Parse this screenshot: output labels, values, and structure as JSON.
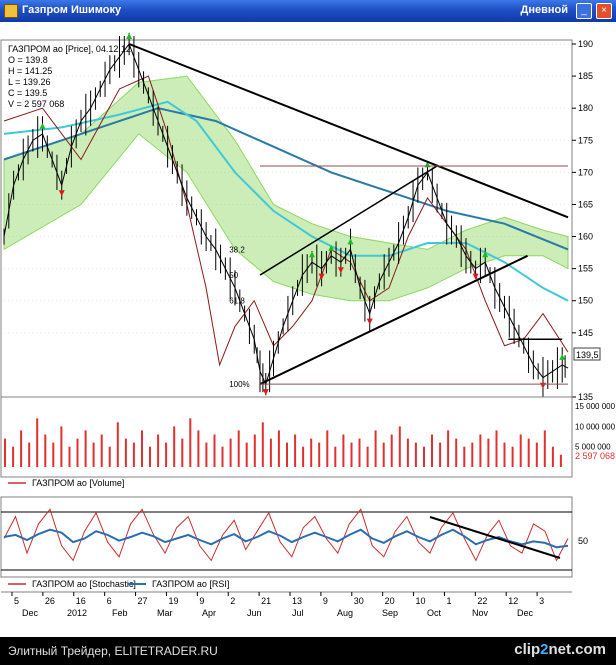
{
  "window": {
    "title": "Газпром Ишимоку",
    "period": "Дневной"
  },
  "colors": {
    "price": "#000000",
    "kijun": "#8b1a1a",
    "ma_fast": "#40c8d8",
    "ma_slow": "#2a7aa8",
    "cloud": "#8ed860",
    "up_marker": "#18c018",
    "down_marker": "#e01818",
    "volume": "#e03030",
    "stochastic": "#c83030",
    "rsi": "#2a6eb0",
    "trendline": "#000000",
    "level_line": "#8a5050"
  },
  "price_panel": {
    "info": [
      "ГАЗПРОМ ао [Price], 04.12.12",
      "O = 139.8",
      "H = 141.25",
      "L = 139.26",
      "C = 139.5",
      "V = 2 597 068"
    ],
    "y_ticks": [
      190,
      185,
      180,
      175,
      170,
      165,
      160,
      155,
      150,
      145,
      135
    ],
    "last_price_label": "139,5",
    "fib_labels": [
      "38.2",
      "50",
      "61.8",
      "100%"
    ]
  },
  "volume_panel": {
    "y_labels": [
      "15 000 000",
      "10 000 000",
      "5 000 000"
    ],
    "last_label": "2 597 068",
    "legend": "ГАЗПРОМ ао [Volume]"
  },
  "osc_panel": {
    "y_label": "50",
    "legend_stoch": "ГАЗПРОМ ао [Stochastic]",
    "legend_rsi": "ГАЗПРОМ ао [RSI]"
  },
  "x_axis": {
    "days": [
      "5",
      "26",
      "16",
      "6",
      "27",
      "19",
      "9",
      "2",
      "21",
      "13",
      "9",
      "30",
      "20",
      "10",
      "1",
      "22",
      "12",
      "3"
    ],
    "months": [
      "Dec",
      "2012",
      "Feb",
      "Mar",
      "Apr",
      "Jun",
      "Jul",
      "Aug",
      "Sep",
      "Oct",
      "Nov",
      "Dec"
    ]
  },
  "footer": {
    "text": "Элитный Трейдер, ELITETRADER.RU",
    "logo_main": "clip",
    "logo_accent": "2",
    "logo_rest": "net.com"
  },
  "chart_data": {
    "type": "line",
    "title": "Газпром Ишимоку",
    "x_range": [
      "2011-12-01",
      "2012-12-04"
    ],
    "ylim": [
      135,
      190
    ],
    "price_path": [
      [
        0,
        160
      ],
      [
        5,
        168
      ],
      [
        10,
        172
      ],
      [
        15,
        175
      ],
      [
        20,
        176
      ],
      [
        25,
        172
      ],
      [
        30,
        168
      ],
      [
        35,
        174
      ],
      [
        40,
        178
      ],
      [
        45,
        180
      ],
      [
        50,
        183
      ],
      [
        55,
        186
      ],
      [
        60,
        188
      ],
      [
        65,
        190
      ],
      [
        70,
        186
      ],
      [
        75,
        182
      ],
      [
        80,
        178
      ],
      [
        85,
        174
      ],
      [
        90,
        170
      ],
      [
        95,
        166
      ],
      [
        100,
        163
      ],
      [
        105,
        160
      ],
      [
        110,
        158
      ],
      [
        115,
        155
      ],
      [
        120,
        152
      ],
      [
        125,
        148
      ],
      [
        130,
        144
      ],
      [
        133,
        139
      ],
      [
        136,
        137
      ],
      [
        140,
        141
      ],
      [
        145,
        146
      ],
      [
        150,
        150
      ],
      [
        155,
        154
      ],
      [
        160,
        156
      ],
      [
        165,
        155
      ],
      [
        170,
        157
      ],
      [
        175,
        156
      ],
      [
        180,
        158
      ],
      [
        185,
        152
      ],
      [
        190,
        148
      ],
      [
        195,
        153
      ],
      [
        200,
        156
      ],
      [
        205,
        159
      ],
      [
        210,
        163
      ],
      [
        215,
        168
      ],
      [
        220,
        170
      ],
      [
        225,
        166
      ],
      [
        230,
        162
      ],
      [
        235,
        160
      ],
      [
        240,
        157
      ],
      [
        245,
        155
      ],
      [
        250,
        156
      ],
      [
        255,
        152
      ],
      [
        260,
        149
      ],
      [
        265,
        146
      ],
      [
        270,
        143
      ],
      [
        275,
        140
      ],
      [
        280,
        138
      ],
      [
        285,
        139
      ],
      [
        290,
        140
      ],
      [
        293,
        139.5
      ]
    ],
    "kijun_path": [
      [
        0,
        178
      ],
      [
        20,
        180
      ],
      [
        40,
        172
      ],
      [
        60,
        183
      ],
      [
        75,
        185
      ],
      [
        85,
        176
      ],
      [
        95,
        165
      ],
      [
        105,
        152
      ],
      [
        112,
        140
      ],
      [
        120,
        146
      ],
      [
        130,
        150
      ],
      [
        140,
        143
      ],
      [
        150,
        146
      ],
      [
        160,
        150
      ],
      [
        170,
        158
      ],
      [
        180,
        156
      ],
      [
        190,
        150
      ],
      [
        200,
        152
      ],
      [
        210,
        160
      ],
      [
        220,
        166
      ],
      [
        230,
        162
      ],
      [
        240,
        158
      ],
      [
        250,
        150
      ],
      [
        260,
        143
      ],
      [
        270,
        144
      ],
      [
        280,
        148
      ],
      [
        293,
        142
      ]
    ],
    "ma_fast_path": [
      [
        0,
        176
      ],
      [
        30,
        177
      ],
      [
        60,
        179
      ],
      [
        85,
        181
      ],
      [
        100,
        178
      ],
      [
        120,
        170
      ],
      [
        140,
        164
      ],
      [
        160,
        160
      ],
      [
        180,
        157
      ],
      [
        200,
        157
      ],
      [
        220,
        159
      ],
      [
        240,
        159
      ],
      [
        260,
        156
      ],
      [
        280,
        152
      ],
      [
        293,
        150
      ]
    ],
    "ma_slow_path": [
      [
        0,
        172
      ],
      [
        40,
        176
      ],
      [
        80,
        180
      ],
      [
        110,
        178
      ],
      [
        140,
        174
      ],
      [
        170,
        170
      ],
      [
        200,
        167
      ],
      [
        230,
        164
      ],
      [
        260,
        162
      ],
      [
        293,
        158
      ]
    ],
    "cloud_upper": [
      [
        0,
        172
      ],
      [
        40,
        176
      ],
      [
        70,
        184
      ],
      [
        95,
        185
      ],
      [
        120,
        175
      ],
      [
        140,
        165
      ],
      [
        160,
        162
      ],
      [
        180,
        160
      ],
      [
        200,
        159
      ],
      [
        220,
        158
      ],
      [
        240,
        161
      ],
      [
        260,
        163
      ],
      [
        280,
        161
      ],
      [
        293,
        160
      ]
    ],
    "cloud_lower": [
      [
        0,
        158
      ],
      [
        40,
        165
      ],
      [
        70,
        176
      ],
      [
        95,
        170
      ],
      [
        120,
        158
      ],
      [
        140,
        153
      ],
      [
        160,
        151
      ],
      [
        180,
        150
      ],
      [
        200,
        150
      ],
      [
        220,
        152
      ],
      [
        240,
        155
      ],
      [
        260,
        157
      ],
      [
        280,
        157
      ],
      [
        293,
        155
      ]
    ],
    "volume": [
      7,
      5,
      9,
      6,
      12,
      8,
      6,
      10,
      5,
      7,
      9,
      6,
      8,
      5,
      11,
      7,
      6,
      9,
      5,
      8,
      6,
      10,
      7,
      12,
      9,
      6,
      8,
      5,
      7,
      9,
      6,
      8,
      11,
      7,
      9,
      6,
      8,
      5,
      7,
      6,
      9,
      5,
      8,
      6,
      7,
      5,
      9,
      6,
      8,
      10,
      7,
      6,
      5,
      8,
      6,
      9,
      7,
      5,
      6,
      8,
      7,
      9,
      6,
      5,
      8,
      7,
      6,
      9,
      5,
      3
    ],
    "stochastic": [
      50,
      80,
      30,
      70,
      90,
      40,
      20,
      60,
      85,
      45,
      25,
      70,
      90,
      55,
      30,
      65,
      80,
      40,
      20,
      55,
      75,
      35,
      60,
      85,
      45,
      25,
      65,
      80,
      50,
      30,
      70,
      90,
      40,
      25,
      60,
      80,
      45,
      30,
      65,
      85,
      50,
      20,
      55,
      75,
      40,
      30,
      70,
      60,
      20,
      50
    ],
    "rsi": [
      52,
      55,
      48,
      56,
      62,
      58,
      45,
      50,
      60,
      55,
      47,
      52,
      58,
      53,
      45,
      50,
      55,
      48,
      42,
      50,
      56,
      46,
      52,
      60,
      54,
      45,
      52,
      58,
      52,
      46,
      55,
      62,
      50,
      44,
      53,
      60,
      52,
      46,
      55,
      62,
      53,
      42,
      48,
      52,
      46,
      42,
      46,
      44,
      38,
      40
    ]
  }
}
